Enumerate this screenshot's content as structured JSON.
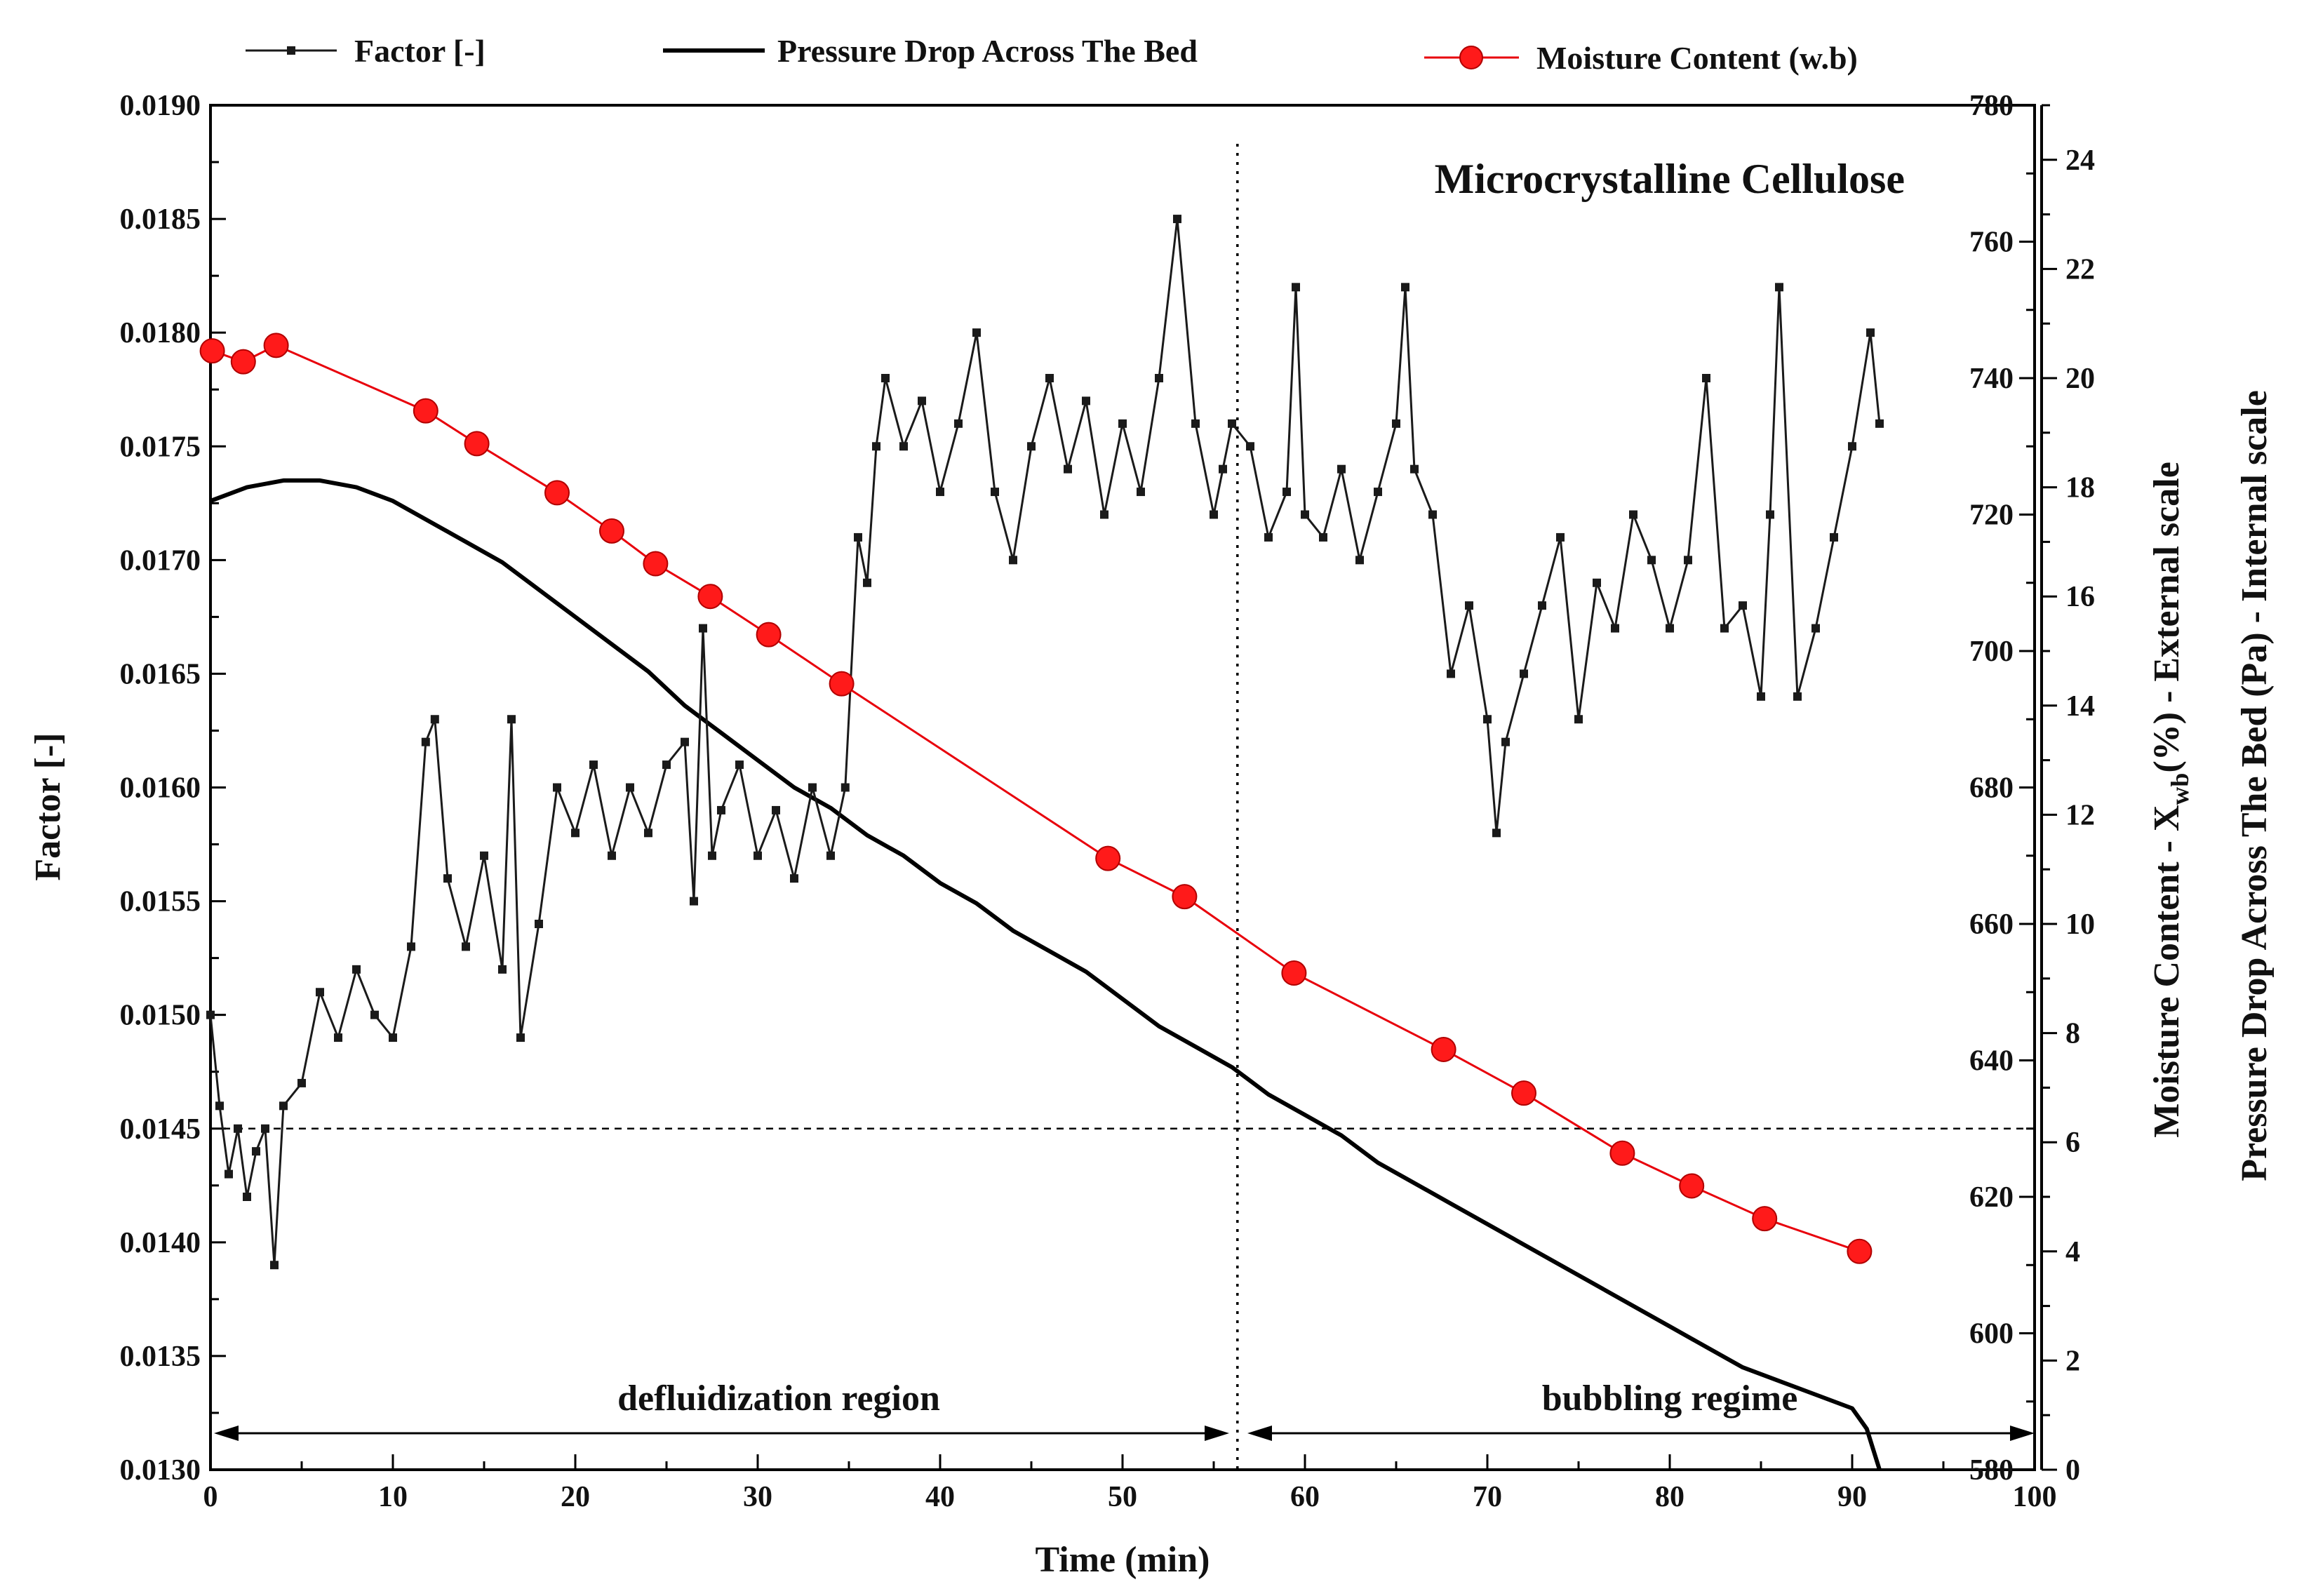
{
  "chart_data": {
    "type": "line",
    "title": "Microcrystalline Cellulose",
    "xlabel": "Time (min)",
    "ylabel_left": "Factor [-]",
    "ylabel_right_outer": "Moisture Content - X",
    "ylabel_right_outer_sub": "wb",
    "ylabel_right_outer_tail": "(%) - External scale",
    "ylabel_right_inner": "Pressure Drop Across The Bed (Pa) - Internal scale",
    "xlim": [
      0,
      100
    ],
    "ylim_left": [
      0.013,
      0.019
    ],
    "ylim_inner": [
      580,
      780
    ],
    "ylim_outer": [
      0,
      25
    ],
    "x_ticks": [
      "0",
      "10",
      "20",
      "30",
      "40",
      "50",
      "60",
      "70",
      "80",
      "90",
      "100"
    ],
    "left_ticks": [
      "0.0130",
      "0.0135",
      "0.0140",
      "0.0145",
      "0.0150",
      "0.0155",
      "0.0160",
      "0.0165",
      "0.0170",
      "0.0175",
      "0.0180",
      "0.0185",
      "0.0190"
    ],
    "inner_ticks": [
      "580",
      "600",
      "620",
      "640",
      "660",
      "680",
      "700",
      "720",
      "740",
      "760",
      "780"
    ],
    "outer_ticks": [
      "0",
      "2",
      "4",
      "6",
      "8",
      "10",
      "12",
      "14",
      "16",
      "18",
      "20",
      "22",
      "24"
    ],
    "legend": {
      "placement": "top",
      "items": [
        "Factor [-]",
        "Pressure Drop Across The Bed",
        "Moisture Content (w.b)"
      ]
    },
    "annotations": {
      "left_region": "defluidization region",
      "right_region": "bubbling regime",
      "transition_time_min": 56.3,
      "threshold_factor": 0.0145
    },
    "colors": {
      "factor": "#1a1a1a",
      "pressure": "#000000",
      "moisture": "#e8000b",
      "moisture_marker": "#ff1a1a"
    },
    "series": [
      {
        "name": "Moisture Content (w.b)",
        "axis": "outer",
        "x": [
          0.1,
          1.8,
          3.6,
          11.8,
          14.6,
          19.0,
          22.0,
          24.4,
          27.4,
          30.6,
          34.6,
          49.2,
          53.4,
          59.4,
          67.6,
          72.0,
          77.4,
          81.2,
          85.2,
          90.4
        ],
        "values": [
          20.5,
          20.3,
          20.6,
          19.4,
          18.8,
          17.9,
          17.2,
          16.6,
          16.0,
          15.3,
          14.4,
          11.2,
          10.5,
          9.1,
          7.7,
          6.9,
          5.8,
          5.2,
          4.6,
          4.0
        ]
      },
      {
        "name": "Pressure Drop Across The Bed",
        "axis": "inner",
        "x": [
          0,
          2,
          4,
          6,
          8,
          10,
          12,
          14,
          16,
          18,
          20,
          22,
          24,
          26,
          28,
          30,
          32,
          34,
          36,
          38,
          40,
          42,
          44,
          46,
          48,
          50,
          52,
          54,
          56,
          58,
          60,
          62,
          64,
          66,
          68,
          70,
          72,
          74,
          76,
          78,
          80,
          82,
          84,
          86,
          88,
          90,
          90.8,
          91.5
        ],
        "values": [
          722,
          724,
          725,
          725,
          724,
          722,
          719,
          716,
          713,
          709,
          705,
          701,
          697,
          692,
          688,
          684,
          680,
          677,
          673,
          670,
          666,
          663,
          659,
          656,
          653,
          649,
          645,
          642,
          639,
          635,
          632,
          629,
          625,
          622,
          619,
          616,
          613,
          610,
          607,
          604,
          601,
          598,
          595,
          593,
          591,
          589,
          586,
          580
        ]
      },
      {
        "name": "Factor [-]",
        "axis": "left",
        "x": [
          0,
          0.5,
          1,
          1.5,
          2,
          2.5,
          3,
          3.5,
          4,
          5,
          6,
          7,
          8,
          9,
          10,
          11,
          11.8,
          12.3,
          13,
          14,
          15,
          16,
          16.5,
          17,
          18,
          19,
          20,
          21,
          22,
          23,
          24,
          25,
          26,
          26.5,
          27,
          27.5,
          28,
          29,
          30,
          31,
          32,
          33,
          34,
          34.8,
          35.5,
          36,
          36.5,
          37,
          38,
          39,
          40,
          41,
          42,
          43,
          44,
          45,
          46,
          47,
          48,
          49,
          50,
          51,
          52,
          53,
          54,
          55,
          55.5,
          56,
          57,
          58,
          59,
          59.5,
          60,
          61,
          62,
          63,
          64,
          65,
          65.5,
          66,
          67,
          68,
          69,
          70,
          70.5,
          71,
          72,
          73,
          74,
          75,
          76,
          77,
          78,
          79,
          80,
          81,
          82,
          83,
          84,
          85,
          85.5,
          86,
          87,
          88,
          89,
          90,
          91,
          91.5
        ],
        "values": [
          0.015,
          0.0146,
          0.0143,
          0.0145,
          0.0142,
          0.0144,
          0.0145,
          0.0139,
          0.0146,
          0.0147,
          0.0151,
          0.0149,
          0.0152,
          0.015,
          0.0149,
          0.0153,
          0.0162,
          0.0163,
          0.0156,
          0.0153,
          0.0157,
          0.0152,
          0.0163,
          0.0149,
          0.0154,
          0.016,
          0.0158,
          0.0161,
          0.0157,
          0.016,
          0.0158,
          0.0161,
          0.0162,
          0.0155,
          0.0167,
          0.0157,
          0.0159,
          0.0161,
          0.0157,
          0.0159,
          0.0156,
          0.016,
          0.0157,
          0.016,
          0.0171,
          0.0169,
          0.0175,
          0.0178,
          0.0175,
          0.0177,
          0.0173,
          0.0176,
          0.018,
          0.0173,
          0.017,
          0.0175,
          0.0178,
          0.0174,
          0.0177,
          0.0172,
          0.0176,
          0.0173,
          0.0178,
          0.0185,
          0.0176,
          0.0172,
          0.0174,
          0.0176,
          0.0175,
          0.0171,
          0.0173,
          0.0182,
          0.0172,
          0.0171,
          0.0174,
          0.017,
          0.0173,
          0.0176,
          0.0182,
          0.0174,
          0.0172,
          0.0165,
          0.0168,
          0.0163,
          0.0158,
          0.0162,
          0.0165,
          0.0168,
          0.0171,
          0.0163,
          0.0169,
          0.0167,
          0.0172,
          0.017,
          0.0167,
          0.017,
          0.0178,
          0.0167,
          0.0168,
          0.0164,
          0.0172,
          0.0182,
          0.0164,
          0.0167,
          0.0171,
          0.0175,
          0.018,
          0.0176
        ]
      }
    ]
  }
}
